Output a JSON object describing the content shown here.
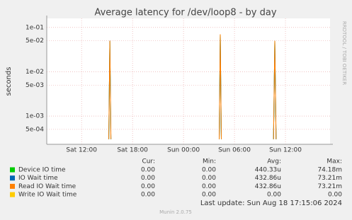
{
  "chart_data": {
    "type": "line",
    "title": "Average latency for /dev/loop8 - by day",
    "y_label": "seconds",
    "side_label": "RRDTOOL / TOBI OETIKER",
    "log_y": true,
    "grid": true,
    "x": [
      15.2,
      15.33,
      15.45,
      21,
      28.2,
      28.33,
      28.45,
      31,
      34.6,
      34.75,
      34.9
    ],
    "xlim": [
      7.9,
      41.25
    ],
    "xticks": [
      {
        "value": 12,
        "label": "Sat 12:00"
      },
      {
        "value": 18,
        "label": "Sat 18:00"
      },
      {
        "value": 24,
        "label": "Sun 00:00"
      },
      {
        "value": 30,
        "label": "Sun 06:00"
      },
      {
        "value": 36,
        "label": "Sun 12:00"
      }
    ],
    "ylim": [
      0.00023,
      0.16
    ],
    "yticks": [
      {
        "value": 0.1,
        "label": "1e-01"
      },
      {
        "value": 0.05,
        "label": "5e-02"
      },
      {
        "value": 0.01,
        "label": "1e-02"
      },
      {
        "value": 0.005,
        "label": "5e-03"
      },
      {
        "value": 0.001,
        "label": "1e-03"
      },
      {
        "value": 0.0005,
        "label": "5e-04"
      }
    ],
    "series": [
      {
        "name": "Device IO time",
        "color": "#00cc00",
        "values": [
          0.0003,
          0.05,
          0.0003,
          null,
          0.0003,
          0.07,
          0.0003,
          null,
          0.0003,
          0.05,
          0.0003
        ]
      },
      {
        "name": "IO Wait time",
        "color": "#0066b3",
        "values": [
          0.0003,
          0.05,
          0.0003,
          null,
          0.0003,
          0.07,
          0.0003,
          null,
          0.0003,
          0.05,
          0.0003
        ]
      },
      {
        "name": "Read IO Wait time",
        "color": "#ff8000",
        "values": [
          0.0003,
          0.05,
          0.0003,
          null,
          0.0003,
          0.07,
          0.0003,
          null,
          0.0003,
          0.05,
          0.0003
        ]
      },
      {
        "name": "Write IO Wait time",
        "color": "#ffcc00",
        "values": [
          null,
          null,
          null,
          null,
          null,
          null,
          null,
          null,
          null,
          null,
          null
        ]
      }
    ]
  },
  "legend_table": {
    "headers": [
      "Cur:",
      "Min:",
      "Avg:",
      "Max:"
    ],
    "rows": [
      [
        "0.00",
        "0.00",
        "440.33u",
        "74.18m"
      ],
      [
        "0.00",
        "0.00",
        "432.86u",
        "73.21m"
      ],
      [
        "0.00",
        "0.00",
        "432.86u",
        "73.21m"
      ],
      [
        "0.00",
        "0.00",
        "0.00",
        "0.00"
      ]
    ]
  },
  "footer": {
    "last_update": "Last update: Sun Aug 18 17:15:06 2024",
    "version": "Munin 2.0.75"
  }
}
